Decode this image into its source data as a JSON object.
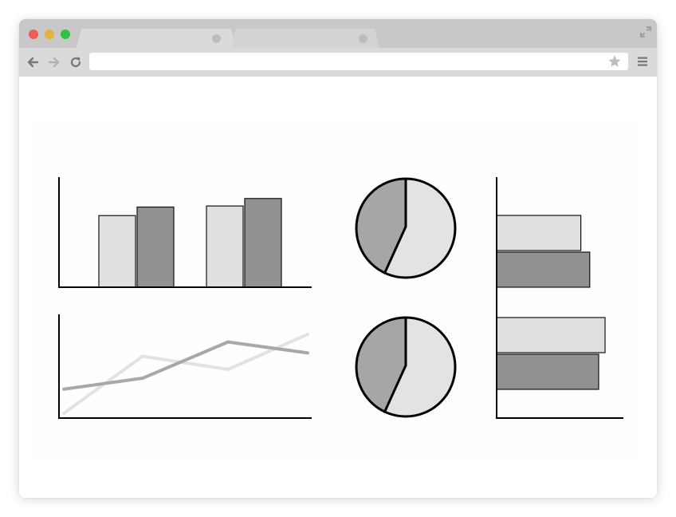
{
  "browser": {
    "traffic_lights": [
      {
        "name": "close",
        "color": "#ee5b58"
      },
      {
        "name": "minimize",
        "color": "#e1b53a"
      },
      {
        "name": "maximize",
        "color": "#31c148"
      }
    ],
    "tabs": [
      {
        "label": "",
        "active": true
      },
      {
        "label": "",
        "active": false
      }
    ],
    "address_bar": {
      "value": "",
      "placeholder": ""
    },
    "icons": [
      "back-icon",
      "forward-icon",
      "reload-icon",
      "star-icon",
      "menu-icon",
      "expand-icon"
    ]
  },
  "colors": {
    "light_gray": "#e0e0e0",
    "dark_gray": "#919191",
    "pie_light": "#e3e3e3",
    "pie_dark": "#a6a6a6",
    "line_light": "#e2e2e2",
    "line_dark": "#a8a8a8",
    "axis": "#000000"
  },
  "chart_data": [
    {
      "type": "bar",
      "orientation": "vertical",
      "categories": [
        "",
        ""
      ],
      "series": [
        {
          "values": [
            67,
            76
          ]
        },
        {
          "values": [
            75,
            83
          ]
        }
      ],
      "ylim": [
        0,
        100
      ],
      "title": "",
      "xlabel": "",
      "ylabel": ""
    },
    {
      "type": "line",
      "x": [
        0,
        1,
        2,
        3
      ],
      "series": [
        {
          "values": [
            0,
            52,
            40,
            72
          ]
        },
        {
          "values": [
            22,
            32,
            65,
            55
          ]
        }
      ],
      "ylim": [
        0,
        80
      ],
      "title": "",
      "xlabel": "",
      "ylabel": ""
    },
    {
      "type": "pie",
      "values": [
        57,
        43
      ],
      "title": ""
    },
    {
      "type": "pie",
      "values": [
        57,
        43
      ],
      "title": ""
    },
    {
      "type": "bar",
      "orientation": "horizontal",
      "categories": [
        "",
        ""
      ],
      "series": [
        {
          "values": [
            66,
            85
          ]
        },
        {
          "values": [
            73,
            80
          ]
        }
      ],
      "xlim": [
        0,
        100
      ],
      "title": "",
      "xlabel": "",
      "ylabel": ""
    }
  ]
}
